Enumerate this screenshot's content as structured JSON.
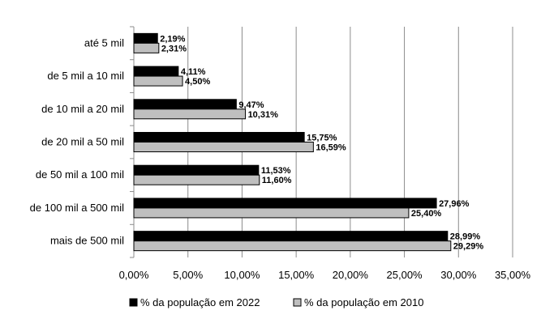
{
  "chart_data": {
    "type": "bar",
    "orientation": "horizontal",
    "categories": [
      "até 5 mil",
      "de 5 mil a 10 mil",
      "de 10 mil a 20 mil",
      "de 20 mil a 50 mil",
      "de 50 mil a 100 mil",
      "de 100 mil a 500 mil",
      "mais de 500 mil"
    ],
    "series": [
      {
        "name": "% da população em 2022",
        "values": [
          2.19,
          4.11,
          9.47,
          15.75,
          11.53,
          27.96,
          28.99
        ],
        "labels": [
          "2,19%",
          "4,11%",
          "9,47%",
          "15,75%",
          "11,53%",
          "27,96%",
          "28,99%"
        ],
        "color": "#000000"
      },
      {
        "name": "% da população em 2010",
        "values": [
          2.31,
          4.5,
          10.31,
          16.59,
          11.6,
          25.4,
          29.29
        ],
        "labels": [
          "2,31%",
          "4,50%",
          "10,31%",
          "16,59%",
          "11,60%",
          "25,40%",
          "29,29%"
        ],
        "color": "#bfbfbf"
      }
    ],
    "xlim": [
      0,
      35
    ],
    "xticks": [
      "0,00%",
      "5,00%",
      "10,00%",
      "15,00%",
      "20,00%",
      "25,00%",
      "30,00%",
      "35,00%"
    ],
    "grid": true,
    "legend_position": "bottom",
    "title": "",
    "xlabel": "",
    "ylabel": ""
  }
}
